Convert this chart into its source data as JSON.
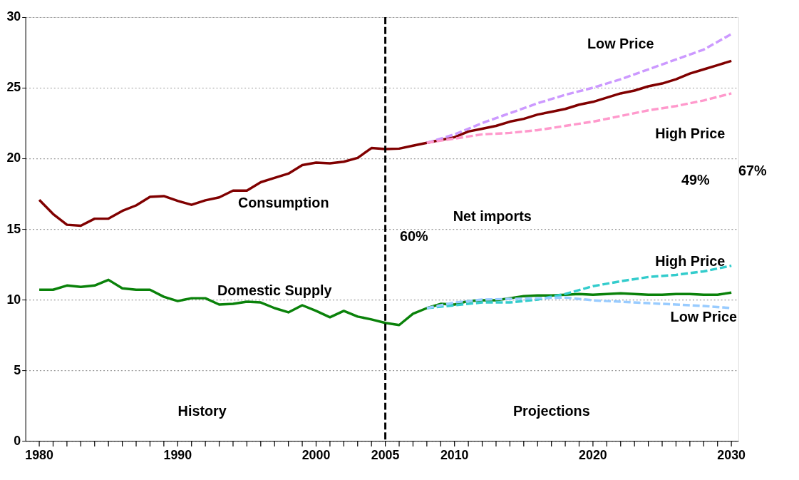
{
  "chart_data": {
    "type": "line",
    "xlim": [
      1979,
      2030.5
    ],
    "xticks": [
      1980,
      {
        "value": 1981,
        "label": null
      },
      {
        "value": 1982,
        "label": null
      },
      {
        "value": 1983,
        "label": null
      },
      {
        "value": 1984,
        "label": null
      },
      {
        "value": 1985,
        "label": null
      },
      {
        "value": 1986,
        "label": null
      },
      {
        "value": 1987,
        "label": null
      },
      {
        "value": 1988,
        "label": null
      },
      {
        "value": 1989,
        "label": null
      },
      1990,
      {
        "value": 1991,
        "label": null
      },
      {
        "value": 1992,
        "label": null
      },
      {
        "value": 1993,
        "label": null
      },
      {
        "value": 1994,
        "label": null
      },
      {
        "value": 1995,
        "label": null
      },
      {
        "value": 1996,
        "label": null
      },
      {
        "value": 1997,
        "label": null
      },
      {
        "value": 1998,
        "label": null
      },
      {
        "value": 1999,
        "label": null
      },
      2000,
      {
        "value": 2001,
        "label": null
      },
      {
        "value": 2002,
        "label": null
      },
      {
        "value": 2003,
        "label": null
      },
      {
        "value": 2004,
        "label": null
      },
      2005,
      {
        "value": 2006,
        "label": null
      },
      {
        "value": 2007,
        "label": null
      },
      {
        "value": 2008,
        "label": null
      },
      {
        "value": 2009,
        "label": null
      },
      2010,
      {
        "value": 2011,
        "label": null
      },
      {
        "value": 2012,
        "label": null
      },
      {
        "value": 2013,
        "label": null
      },
      {
        "value": 2014,
        "label": null
      },
      {
        "value": 2015,
        "label": null
      },
      {
        "value": 2016,
        "label": null
      },
      {
        "value": 2017,
        "label": null
      },
      {
        "value": 2018,
        "label": null
      },
      {
        "value": 2019,
        "label": null
      },
      2020,
      {
        "value": 2021,
        "label": null
      },
      {
        "value": 2022,
        "label": null
      },
      {
        "value": 2023,
        "label": null
      },
      {
        "value": 2024,
        "label": null
      },
      {
        "value": 2025,
        "label": null
      },
      {
        "value": 2026,
        "label": null
      },
      {
        "value": 2027,
        "label": null
      },
      {
        "value": 2028,
        "label": null
      },
      {
        "value": 2029,
        "label": null
      },
      2030
    ],
    "ylim": [
      0,
      30
    ],
    "yticks": [
      0,
      5,
      10,
      15,
      20,
      25,
      30
    ],
    "grid": "y",
    "marker": "none",
    "series": [
      {
        "name": "Consumption",
        "color": "#800000",
        "line_style": "solid",
        "x": [
          1980,
          1981,
          1982,
          1983,
          1984,
          1985,
          1986,
          1987,
          1988,
          1989,
          1990,
          1991,
          1992,
          1993,
          1994,
          1995,
          1996,
          1997,
          1998,
          1999,
          2000,
          2001,
          2002,
          2003,
          2004,
          2005,
          2006,
          2007,
          2008,
          2009,
          2010,
          2011,
          2012,
          2013,
          2014,
          2015,
          2016,
          2017,
          2018,
          2019,
          2020,
          2021,
          2022,
          2023,
          2024,
          2025,
          2026,
          2027,
          2028,
          2029,
          2030
        ],
        "values": [
          17.06,
          16.06,
          15.3,
          15.23,
          15.73,
          15.73,
          16.28,
          16.67,
          17.28,
          17.33,
          16.99,
          16.71,
          17.03,
          17.24,
          17.72,
          17.72,
          18.31,
          18.62,
          18.92,
          19.52,
          19.7,
          19.65,
          19.76,
          20.03,
          20.73,
          20.66,
          20.69,
          20.9,
          21.1,
          21.3,
          21.5,
          21.9,
          22.1,
          22.3,
          22.6,
          22.8,
          23.1,
          23.3,
          23.5,
          23.8,
          24.0,
          24.3,
          24.6,
          24.8,
          25.1,
          25.3,
          25.6,
          26.0,
          26.3,
          26.6,
          26.9
        ]
      },
      {
        "name": "Domestic Supply",
        "color": "#0a820a",
        "line_style": "solid",
        "x": [
          1980,
          1981,
          1982,
          1983,
          1984,
          1985,
          1986,
          1987,
          1988,
          1989,
          1990,
          1991,
          1992,
          1993,
          1994,
          1995,
          1996,
          1997,
          1998,
          1999,
          2000,
          2001,
          2002,
          2003,
          2004,
          2005,
          2006,
          2007,
          2008,
          2009,
          2010,
          2011,
          2012,
          2013,
          2014,
          2015,
          2016,
          2017,
          2018,
          2019,
          2020,
          2021,
          2022,
          2023,
          2024,
          2025,
          2026,
          2027,
          2028,
          2029,
          2030
        ],
        "values": [
          10.7,
          10.7,
          11.0,
          10.9,
          11.0,
          11.4,
          10.8,
          10.7,
          10.7,
          10.2,
          9.9,
          10.1,
          10.1,
          9.65,
          9.7,
          9.85,
          9.8,
          9.4,
          9.1,
          9.6,
          9.2,
          8.75,
          9.2,
          8.8,
          8.6,
          8.35,
          8.2,
          9.0,
          9.4,
          9.7,
          9.65,
          9.9,
          9.95,
          9.95,
          10.1,
          10.25,
          10.3,
          10.3,
          10.35,
          10.4,
          10.35,
          10.4,
          10.45,
          10.4,
          10.35,
          10.35,
          10.4,
          10.4,
          10.35,
          10.35,
          10.5
        ]
      },
      {
        "name": "Low Price",
        "color": "#cc99ff",
        "line_style": "dashed",
        "x": [
          2008,
          2010,
          2012,
          2014,
          2016,
          2018,
          2020,
          2022,
          2024,
          2026,
          2028,
          2030
        ],
        "values": [
          21.1,
          21.7,
          22.5,
          23.2,
          23.9,
          24.5,
          25.0,
          25.6,
          26.3,
          27.0,
          27.7,
          28.8
        ]
      },
      {
        "name": "High Price",
        "color": "#ff99cc",
        "line_style": "dashed",
        "x": [
          2008,
          2010,
          2012,
          2014,
          2016,
          2018,
          2020,
          2022,
          2024,
          2026,
          2028,
          2030
        ],
        "values": [
          21.1,
          21.4,
          21.7,
          21.8,
          22.0,
          22.3,
          22.6,
          23.0,
          23.4,
          23.7,
          24.1,
          24.6
        ]
      },
      {
        "name": "High Price",
        "color": "#33cccc",
        "line_style": "dashed",
        "x": [
          2008,
          2010,
          2012,
          2014,
          2016,
          2018,
          2020,
          2022,
          2024,
          2026,
          2028,
          2030
        ],
        "values": [
          9.4,
          9.6,
          9.8,
          9.8,
          10.0,
          10.4,
          10.95,
          11.3,
          11.6,
          11.75,
          12.0,
          12.4
        ]
      },
      {
        "name": "Low Price",
        "color": "#99ccff",
        "line_style": "dashed",
        "x": [
          2008,
          2010,
          2012,
          2014,
          2016,
          2018,
          2020,
          2022,
          2024,
          2026,
          2028,
          2030
        ],
        "values": [
          9.4,
          9.8,
          10.0,
          10.05,
          10.1,
          10.15,
          9.95,
          9.85,
          9.75,
          9.65,
          9.55,
          9.4
        ]
      }
    ],
    "ref_lines": [
      {
        "axis": "x",
        "value": 2005,
        "color": "#000000",
        "line_style": "dashed"
      }
    ],
    "annotations": [
      "Net imports",
      "60%",
      "49%",
      "67%",
      "History",
      "Projections"
    ]
  }
}
